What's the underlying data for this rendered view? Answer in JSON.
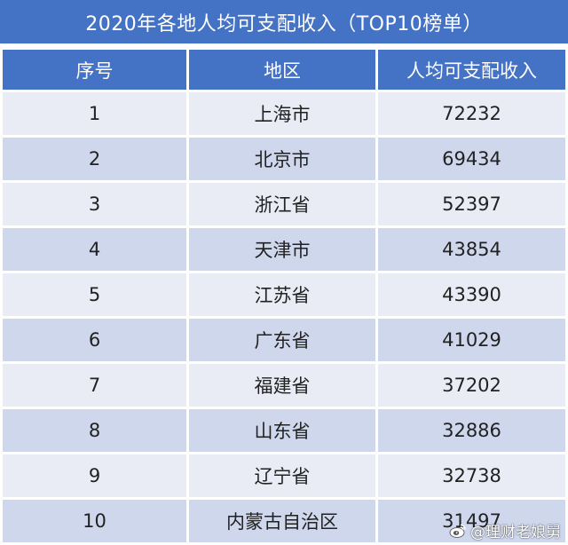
{
  "title": "2020年各地人均可支配收入（TOP10榜单）",
  "table": {
    "headers": [
      "序号",
      "地区",
      "人均可支配收入"
    ],
    "rows": [
      {
        "rank": "1",
        "region": "上海市",
        "income": "72232"
      },
      {
        "rank": "2",
        "region": "北京市",
        "income": "69434"
      },
      {
        "rank": "3",
        "region": "浙江省",
        "income": "52397"
      },
      {
        "rank": "4",
        "region": "天津市",
        "income": "43854"
      },
      {
        "rank": "5",
        "region": "江苏省",
        "income": "43390"
      },
      {
        "rank": "6",
        "region": "广东省",
        "income": "41029"
      },
      {
        "rank": "7",
        "region": "福建省",
        "income": "37202"
      },
      {
        "rank": "8",
        "region": "山东省",
        "income": "32886"
      },
      {
        "rank": "9",
        "region": "辽宁省",
        "income": "32738"
      },
      {
        "rank": "10",
        "region": "内蒙古自治区",
        "income": "31497"
      }
    ]
  },
  "watermark": {
    "text": "@理财老娘舅",
    "icon": "weibo-icon"
  },
  "colors": {
    "header_blue": "#4472c4",
    "row_light": "#e9ecf5",
    "row_dark": "#cfd7ec"
  }
}
